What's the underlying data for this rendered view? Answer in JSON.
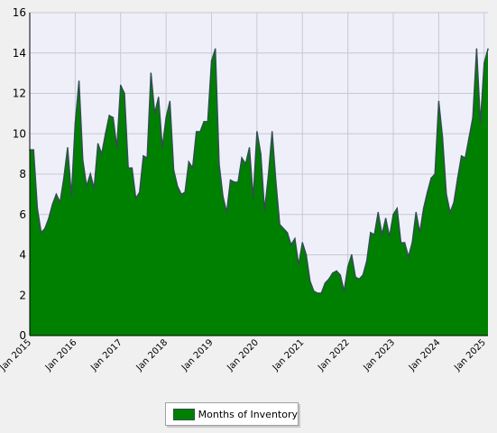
{
  "chart_data": {
    "type": "area",
    "title": "",
    "xlabel": "",
    "ylabel": "",
    "ylim": [
      0,
      16
    ],
    "yticks": [
      0,
      2,
      4,
      6,
      8,
      10,
      12,
      14,
      16
    ],
    "x_tick_labels": [
      "Jan 2015",
      "Jan 2016",
      "Jan 2017",
      "Jan 2018",
      "Jan 2019",
      "Jan 2020",
      "Jan 2021",
      "Jan 2022",
      "Jan 2023",
      "Jan 2024",
      "Jan 2025"
    ],
    "x_start": "2015-01",
    "x_frequency": "monthly",
    "grid": true,
    "legend_position": "bottom-center",
    "colors": {
      "fill": "#008000",
      "line": "#2f4f4f",
      "plot_background": "#efeffa",
      "grid": "#c8c8d2"
    },
    "series": [
      {
        "name": "Months of Inventory",
        "values": [
          9.2,
          9.2,
          6.3,
          5.1,
          5.3,
          5.8,
          6.5,
          7.0,
          6.6,
          7.8,
          9.3,
          6.9,
          10.5,
          12.6,
          8.7,
          7.4,
          8.0,
          7.3,
          9.5,
          9.0,
          10.0,
          10.9,
          10.8,
          9.3,
          12.4,
          12.0,
          8.3,
          8.3,
          6.8,
          7.1,
          8.9,
          8.8,
          13.0,
          11.0,
          11.8,
          9.3,
          10.8,
          11.6,
          8.2,
          7.4,
          7.0,
          7.1,
          8.6,
          8.3,
          10.1,
          10.1,
          10.6,
          10.6,
          13.6,
          14.2,
          8.5,
          6.9,
          6.1,
          7.7,
          7.6,
          7.6,
          8.8,
          8.5,
          9.3,
          6.8,
          10.1,
          9.0,
          6.2,
          7.9,
          10.1,
          7.6,
          5.5,
          5.3,
          5.1,
          4.5,
          4.8,
          3.5,
          4.6,
          4.0,
          2.7,
          2.2,
          2.1,
          2.1,
          2.6,
          2.8,
          3.1,
          3.2,
          3.0,
          2.2,
          3.4,
          4.0,
          2.9,
          2.8,
          3.0,
          3.7,
          5.1,
          5.0,
          6.1,
          5.0,
          5.8,
          4.9,
          6.0,
          6.3,
          4.6,
          4.6,
          3.9,
          4.6,
          6.1,
          5.1,
          6.3,
          7.1,
          7.8,
          8.0,
          11.6,
          9.8,
          7.0,
          6.1,
          6.6,
          7.8,
          8.9,
          8.8,
          9.8,
          10.8,
          14.2,
          10.5,
          13.5,
          14.2
        ]
      }
    ]
  }
}
